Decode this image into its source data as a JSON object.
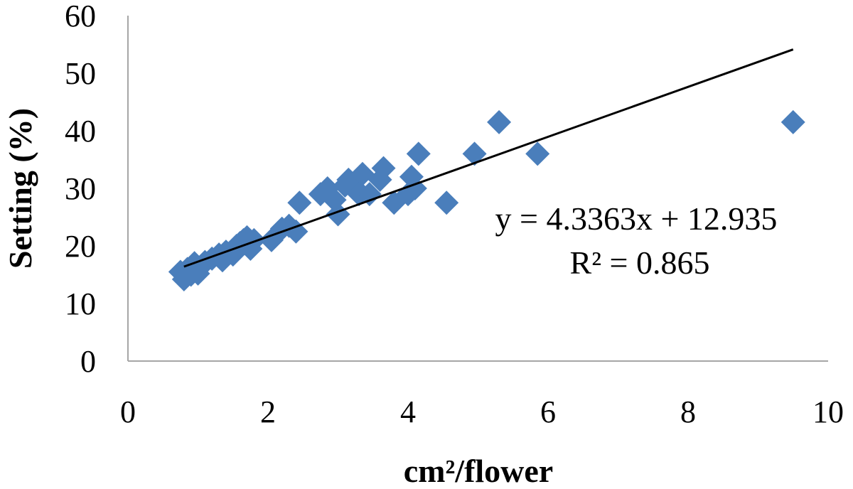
{
  "chart_data": {
    "type": "scatter",
    "title": "",
    "xlabel": "cm²/flower",
    "ylabel": "Setting (%)",
    "xlim": [
      0,
      10
    ],
    "ylim": [
      0,
      60
    ],
    "x_ticks": [
      "0",
      "2",
      "4",
      "6",
      "8",
      "10"
    ],
    "y_ticks": [
      "0",
      "10",
      "20",
      "30",
      "40",
      "50",
      "60"
    ],
    "grid": false,
    "legend": "none",
    "marker": "diamond",
    "marker_color": "#4a7ebb",
    "trendline": {
      "type": "linear",
      "slope": 4.3363,
      "intercept": 12.935,
      "x_range": [
        0.8,
        9.5
      ],
      "color": "#000000"
    },
    "annotations": {
      "equation": "y = 4.3363x + 12.935",
      "r_squared": "R² = 0.865"
    },
    "points": [
      [
        0.75,
        15.5
      ],
      [
        0.8,
        14.2
      ],
      [
        0.85,
        16.0
      ],
      [
        0.9,
        15.0
      ],
      [
        0.95,
        17.0
      ],
      [
        1.0,
        15.2
      ],
      [
        1.05,
        16.5
      ],
      [
        1.1,
        17.2
      ],
      [
        1.2,
        17.8
      ],
      [
        1.3,
        18.5
      ],
      [
        1.35,
        17.5
      ],
      [
        1.4,
        19.0
      ],
      [
        1.5,
        18.5
      ],
      [
        1.55,
        20.0
      ],
      [
        1.6,
        20.5
      ],
      [
        1.65,
        21.0
      ],
      [
        1.7,
        21.5
      ],
      [
        1.75,
        19.5
      ],
      [
        1.8,
        21.0
      ],
      [
        2.05,
        21.0
      ],
      [
        2.2,
        23.0
      ],
      [
        2.3,
        23.5
      ],
      [
        2.4,
        22.5
      ],
      [
        2.45,
        27.5
      ],
      [
        2.75,
        29.0
      ],
      [
        2.85,
        30.0
      ],
      [
        2.95,
        28.0
      ],
      [
        3.0,
        25.5
      ],
      [
        3.1,
        30.5
      ],
      [
        3.15,
        31.5
      ],
      [
        3.25,
        30.0
      ],
      [
        3.3,
        29.0
      ],
      [
        3.35,
        32.5
      ],
      [
        3.45,
        29.0
      ],
      [
        3.6,
        31.5
      ],
      [
        3.65,
        33.5
      ],
      [
        3.8,
        27.5
      ],
      [
        4.0,
        29.0
      ],
      [
        4.05,
        32.0
      ],
      [
        4.1,
        30.0
      ],
      [
        4.15,
        36.0
      ],
      [
        4.55,
        27.5
      ],
      [
        4.95,
        36.0
      ],
      [
        5.3,
        41.5
      ],
      [
        5.85,
        36.0
      ],
      [
        9.5,
        41.5
      ]
    ]
  }
}
